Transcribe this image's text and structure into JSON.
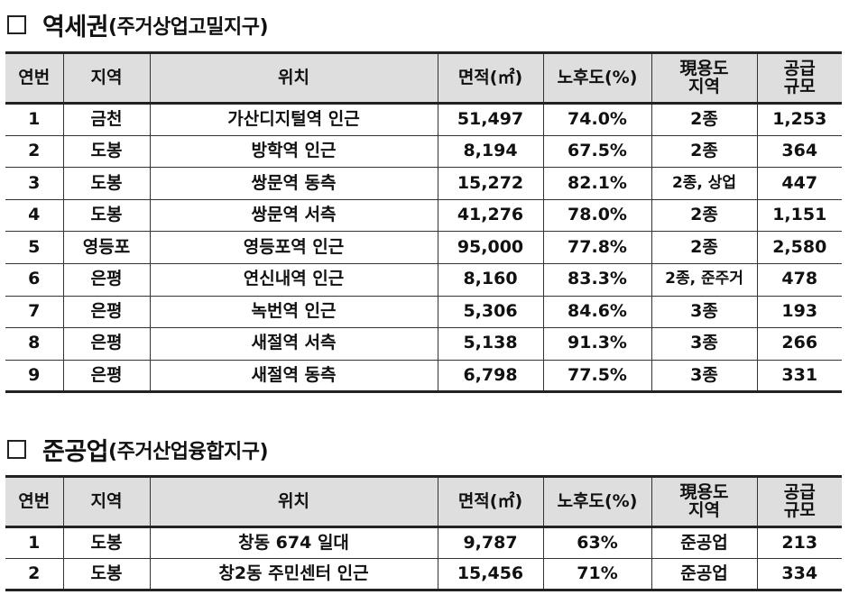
{
  "section1": {
    "title_main": "역세권",
    "title_sub": "(주거상업고밀지구)",
    "headers": [
      "연번",
      "지역",
      "위치",
      "면적(㎡)",
      "노후도(%)",
      "現용도 지역",
      "공급 규모"
    ],
    "header_lines": [
      [
        "연번"
      ],
      [
        "지역"
      ],
      [
        "위치"
      ],
      [
        "면적(㎡)"
      ],
      [
        "노후도(%)"
      ],
      [
        "現용도",
        "지역"
      ],
      [
        "공급",
        "규모"
      ]
    ],
    "rows": [
      [
        "1",
        "금천",
        "가산디지털역 인근",
        "51,497",
        "74.0%",
        "2종",
        "1,253"
      ],
      [
        "2",
        "도봉",
        "방학역 인근",
        "8,194",
        "67.5%",
        "2종",
        "364"
      ],
      [
        "3",
        "도봉",
        "쌍문역 동측",
        "15,272",
        "82.1%",
        "2종, 상업",
        "447"
      ],
      [
        "4",
        "도봉",
        "쌍문역 서측",
        "41,276",
        "78.0%",
        "2종",
        "1,151"
      ],
      [
        "5",
        "영등포",
        "영등포역 인근",
        "95,000",
        "77.8%",
        "2종",
        "2,580"
      ],
      [
        "6",
        "은평",
        "연신내역 인근",
        "8,160",
        "83.3%",
        "2종, 준주거",
        "478"
      ],
      [
        "7",
        "은평",
        "녹번역 인근",
        "5,306",
        "84.6%",
        "3종",
        "193"
      ],
      [
        "8",
        "은평",
        "새절역 서측",
        "5,138",
        "91.3%",
        "3종",
        "266"
      ],
      [
        "9",
        "은평",
        "새절역 동측",
        "6,798",
        "77.5%",
        "3종",
        "331"
      ]
    ]
  },
  "section2": {
    "title_main": "준공업",
    "title_sub": "(주거산업융합지구)",
    "header_lines": [
      [
        "연번"
      ],
      [
        "지역"
      ],
      [
        "위치"
      ],
      [
        "면적(㎡)"
      ],
      [
        "노후도(%)"
      ],
      [
        "現용도",
        "지역"
      ],
      [
        "공급",
        "규모"
      ]
    ],
    "rows": [
      [
        "1",
        "도봉",
        "창동 674 일대",
        "9,787",
        "63%",
        "준공업",
        "213"
      ],
      [
        "2",
        "도봉",
        "창2동 주민센터 인근",
        "15,456",
        "71%",
        "준공업",
        "334"
      ]
    ]
  }
}
